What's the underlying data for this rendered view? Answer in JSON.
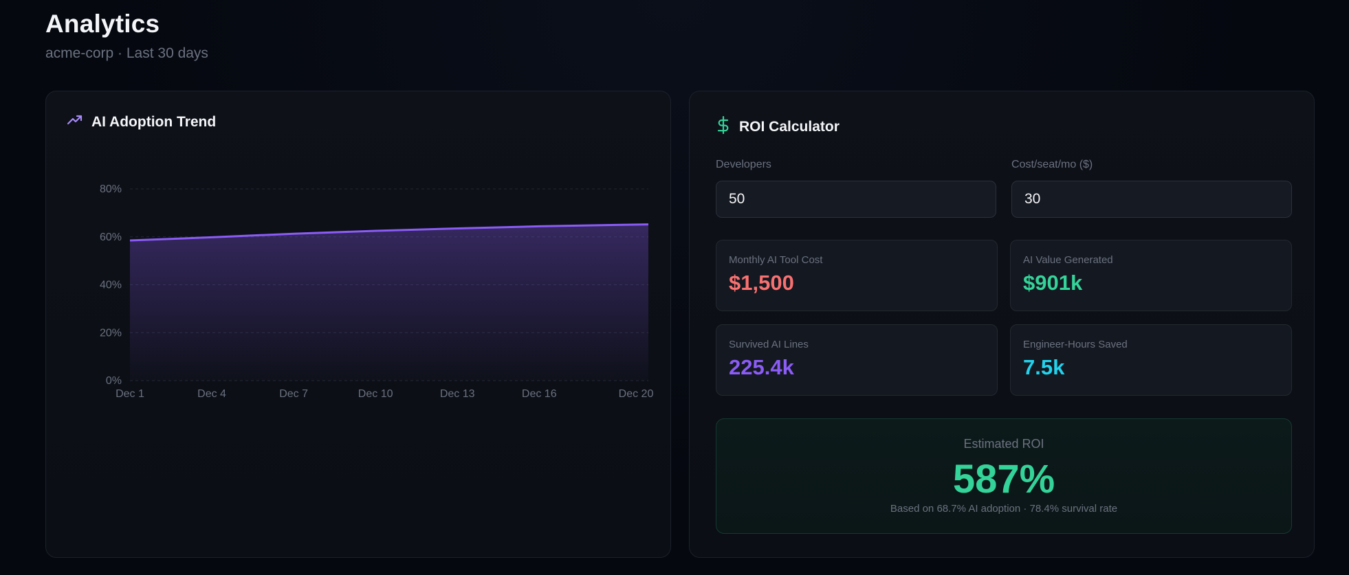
{
  "header": {
    "title": "Analytics",
    "subtitle": "acme-corp · Last 30 days"
  },
  "adoption_card": {
    "title": "AI Adoption Trend",
    "icon": "trending-up-icon"
  },
  "chart_data": {
    "type": "area",
    "title": "AI Adoption Trend",
    "xlabel": "",
    "ylabel": "",
    "x": [
      "Dec 1",
      "Dec 4",
      "Dec 7",
      "Dec 10",
      "Dec 13",
      "Dec 16",
      "Dec 20"
    ],
    "values": [
      58.5,
      59.8,
      61.3,
      62.5,
      63.5,
      64.4,
      65.2
    ],
    "ylim": [
      0,
      80
    ],
    "yticks": [
      "0%",
      "20%",
      "40%",
      "60%",
      "80%"
    ],
    "ytick_values": [
      0,
      20,
      40,
      60,
      80
    ],
    "grid": true,
    "line_color": "#8b5cf6"
  },
  "roi_card": {
    "title": "ROI Calculator",
    "icon": "dollar-icon",
    "developers_label": "Developers",
    "developers_value": "50",
    "cost_label": "Cost/seat/mo ($)",
    "cost_value": "30",
    "stats": [
      {
        "label": "Monthly AI Tool Cost",
        "value": "$1,500",
        "color": "#f87171"
      },
      {
        "label": "AI Value Generated",
        "value": "$901k",
        "color": "#34d399"
      },
      {
        "label": "Survived AI Lines",
        "value": "225.4k",
        "color": "#8b5cf6"
      },
      {
        "label": "Engineer-Hours Saved",
        "value": "7.5k",
        "color": "#22d3ee"
      }
    ],
    "roi_label": "Estimated ROI",
    "roi_value": "587%",
    "roi_note": "Based on 68.7% AI adoption · 78.4% survival rate"
  }
}
